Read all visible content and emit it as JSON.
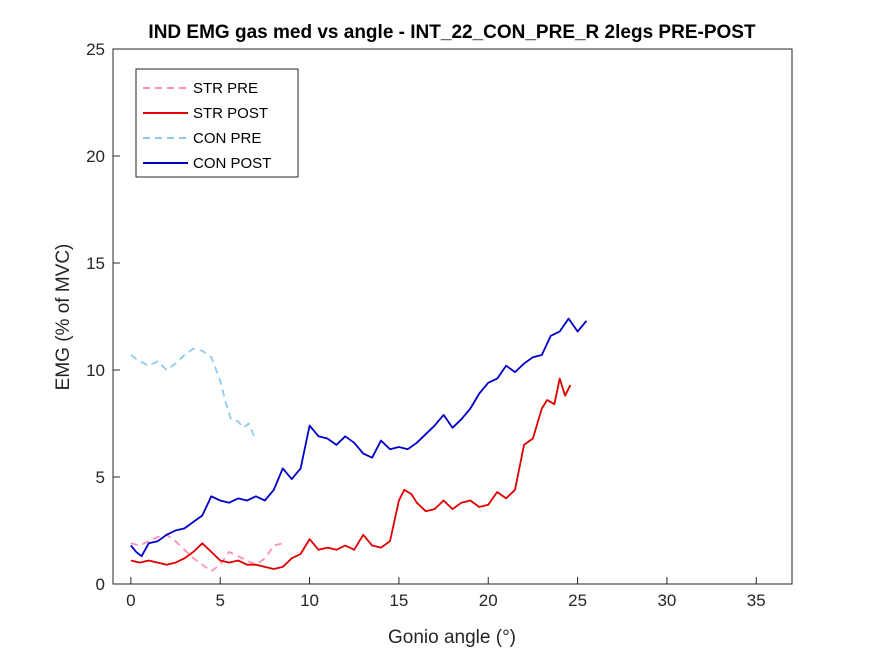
{
  "chart_data": {
    "type": "line",
    "title": "IND EMG gas med vs angle - INT_22_CON_PRE_R 2legs PRE-POST",
    "xlabel": "Gonio angle (°)",
    "ylabel": "EMG (% of MVC)",
    "xlim": [
      -1,
      37
    ],
    "ylim": [
      0,
      25
    ],
    "xticks": [
      0,
      5,
      10,
      15,
      20,
      25,
      30,
      35
    ],
    "yticks": [
      0,
      5,
      10,
      15,
      20,
      25
    ],
    "grid": false,
    "legend_position": "top-left",
    "series": [
      {
        "name": "STR PRE",
        "color": "#ff8fb8",
        "style": "dashed",
        "x": [
          0,
          0.5,
          1.0,
          1.5,
          2.0,
          2.5,
          3.0,
          3.5,
          4.0,
          4.5,
          5.0,
          5.5,
          6.0,
          6.5,
          7.0,
          7.5,
          8.0,
          8.5
        ],
        "y": [
          1.9,
          1.8,
          2.0,
          2.2,
          2.3,
          2.0,
          1.6,
          1.2,
          0.9,
          0.6,
          0.9,
          1.5,
          1.3,
          1.1,
          0.9,
          1.2,
          1.8,
          1.9
        ]
      },
      {
        "name": "STR POST",
        "color": "#e00000",
        "style": "solid",
        "x": [
          0,
          0.5,
          1.0,
          1.5,
          2.0,
          2.5,
          3.0,
          3.5,
          4.0,
          4.5,
          5.0,
          5.5,
          6.0,
          6.5,
          7.0,
          7.5,
          8.0,
          8.5,
          9.0,
          9.5,
          10.0,
          10.5,
          11.0,
          11.5,
          12.0,
          12.5,
          13.0,
          13.5,
          14.0,
          14.5,
          15.0,
          15.3,
          15.7,
          16.0,
          16.5,
          17.0,
          17.5,
          18.0,
          18.5,
          19.0,
          19.5,
          20.0,
          20.5,
          21.0,
          21.5,
          22.0,
          22.5,
          23.0,
          23.3,
          23.7,
          24.0,
          24.3,
          24.6
        ],
        "y": [
          1.1,
          1.0,
          1.1,
          1.0,
          0.9,
          1.0,
          1.2,
          1.5,
          1.9,
          1.5,
          1.1,
          1.0,
          1.1,
          0.9,
          0.9,
          0.8,
          0.7,
          0.8,
          1.2,
          1.4,
          2.1,
          1.6,
          1.7,
          1.6,
          1.8,
          1.6,
          2.3,
          1.8,
          1.7,
          2.0,
          3.9,
          4.4,
          4.2,
          3.8,
          3.4,
          3.5,
          3.9,
          3.5,
          3.8,
          3.9,
          3.6,
          3.7,
          4.3,
          4.0,
          4.4,
          6.5,
          6.8,
          8.2,
          8.6,
          8.4,
          9.6,
          8.8,
          9.3
        ]
      },
      {
        "name": "CON PRE",
        "color": "#8ccaf0",
        "style": "dashed",
        "x": [
          0,
          0.5,
          1.0,
          1.5,
          2.0,
          2.5,
          3.0,
          3.5,
          4.0,
          4.5,
          5.0,
          5.3,
          5.6,
          6.0,
          6.3,
          6.6,
          6.9
        ],
        "y": [
          10.7,
          10.4,
          10.2,
          10.4,
          10.0,
          10.3,
          10.7,
          11.0,
          10.9,
          10.6,
          9.5,
          8.5,
          7.7,
          7.6,
          7.3,
          7.5,
          6.9
        ]
      },
      {
        "name": "CON POST",
        "color": "#0000c8",
        "style": "solid",
        "x": [
          0,
          0.3,
          0.6,
          1.0,
          1.5,
          2.0,
          2.5,
          3.0,
          3.5,
          4.0,
          4.5,
          5.0,
          5.5,
          6.0,
          6.5,
          7.0,
          7.5,
          8.0,
          8.5,
          9.0,
          9.5,
          10.0,
          10.5,
          11.0,
          11.5,
          12.0,
          12.5,
          13.0,
          13.5,
          14.0,
          14.5,
          15.0,
          15.5,
          16.0,
          16.5,
          17.0,
          17.5,
          18.0,
          18.5,
          19.0,
          19.5,
          20.0,
          20.5,
          21.0,
          21.5,
          22.0,
          22.5,
          23.0,
          23.5,
          24.0,
          24.5,
          25.0,
          25.5
        ],
        "y": [
          1.8,
          1.5,
          1.3,
          1.9,
          2.0,
          2.3,
          2.5,
          2.6,
          2.9,
          3.2,
          4.1,
          3.9,
          3.8,
          4.0,
          3.9,
          4.1,
          3.9,
          4.4,
          5.4,
          4.9,
          5.4,
          7.4,
          6.9,
          6.8,
          6.5,
          6.9,
          6.6,
          6.1,
          5.9,
          6.7,
          6.3,
          6.4,
          6.3,
          6.6,
          7.0,
          7.4,
          7.9,
          7.3,
          7.7,
          8.2,
          8.9,
          9.4,
          9.6,
          10.2,
          9.9,
          10.3,
          10.6,
          10.7,
          11.6,
          11.8,
          12.4,
          11.8,
          12.3
        ]
      }
    ]
  }
}
